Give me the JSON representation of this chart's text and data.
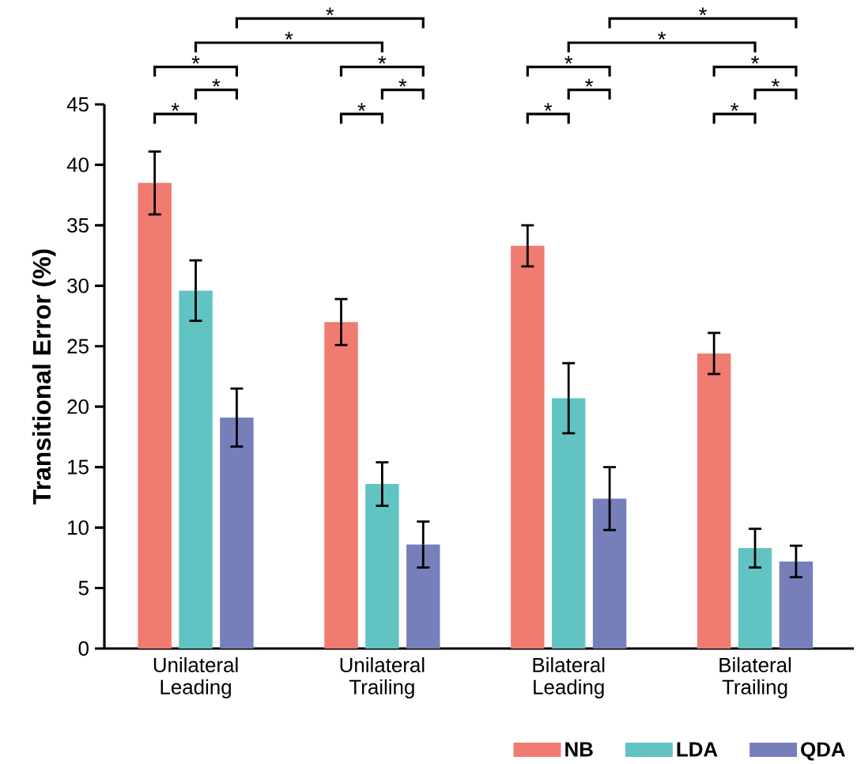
{
  "chart_data": {
    "type": "bar",
    "ylabel": "Transitional Error (%)",
    "categories": [
      "Unilateral\nLeading",
      "Unilateral\nTrailing",
      "Bilateral\nLeading",
      "Bilateral\nTrailing"
    ],
    "series": [
      {
        "name": "NB",
        "color": "#f07b70",
        "values": [
          38.5,
          27.0,
          33.3,
          24.4
        ],
        "errors": [
          2.6,
          1.9,
          1.7,
          1.7
        ]
      },
      {
        "name": "LDA",
        "color": "#62c3c3",
        "values": [
          29.6,
          13.6,
          20.7,
          8.3
        ],
        "errors": [
          2.5,
          1.8,
          2.9,
          1.6
        ]
      },
      {
        "name": "QDA",
        "color": "#777fbb",
        "values": [
          19.1,
          8.6,
          12.4,
          7.2
        ],
        "errors": [
          2.4,
          1.9,
          2.6,
          1.3
        ]
      }
    ],
    "ylim": [
      0,
      45
    ],
    "yticks": [
      0,
      5,
      10,
      15,
      20,
      25,
      30,
      35,
      40,
      45
    ],
    "legend": "bottom right",
    "grid": false,
    "annotations": [
      "*",
      "*",
      "*",
      "*",
      "*",
      "*",
      "*",
      "*",
      "*",
      "*",
      "*",
      "*",
      "*",
      "*",
      "*",
      "*"
    ]
  }
}
